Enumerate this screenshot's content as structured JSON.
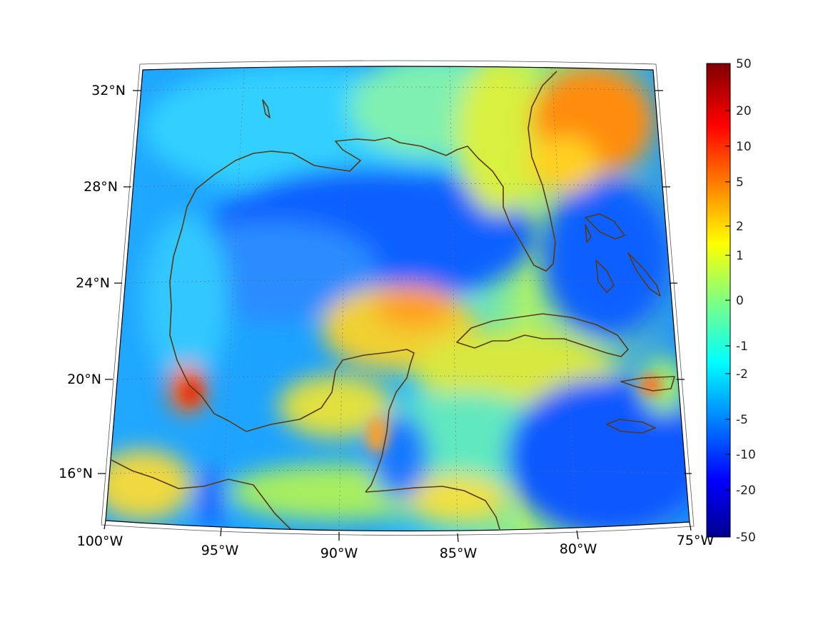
{
  "map": {
    "projection": "conic",
    "lon_range": [
      -100,
      -75
    ],
    "lat_range": [
      14,
      33
    ],
    "coastline_color": "#5a3a10",
    "graticule": true,
    "lat_labels": [
      "32°N",
      "28°N",
      "24°N",
      "20°N",
      "16°N"
    ],
    "lon_labels": [
      "100°W",
      "95°W",
      "90°W",
      "85°W",
      "80°W",
      "75°W"
    ]
  },
  "colorbar": {
    "colormap": "jet",
    "placement": "right",
    "tick_labels": [
      "50",
      "20",
      "10",
      "5",
      "2",
      "1",
      "0",
      "-1",
      "-2",
      "-5",
      "-10",
      "-20",
      "-50"
    ]
  }
}
